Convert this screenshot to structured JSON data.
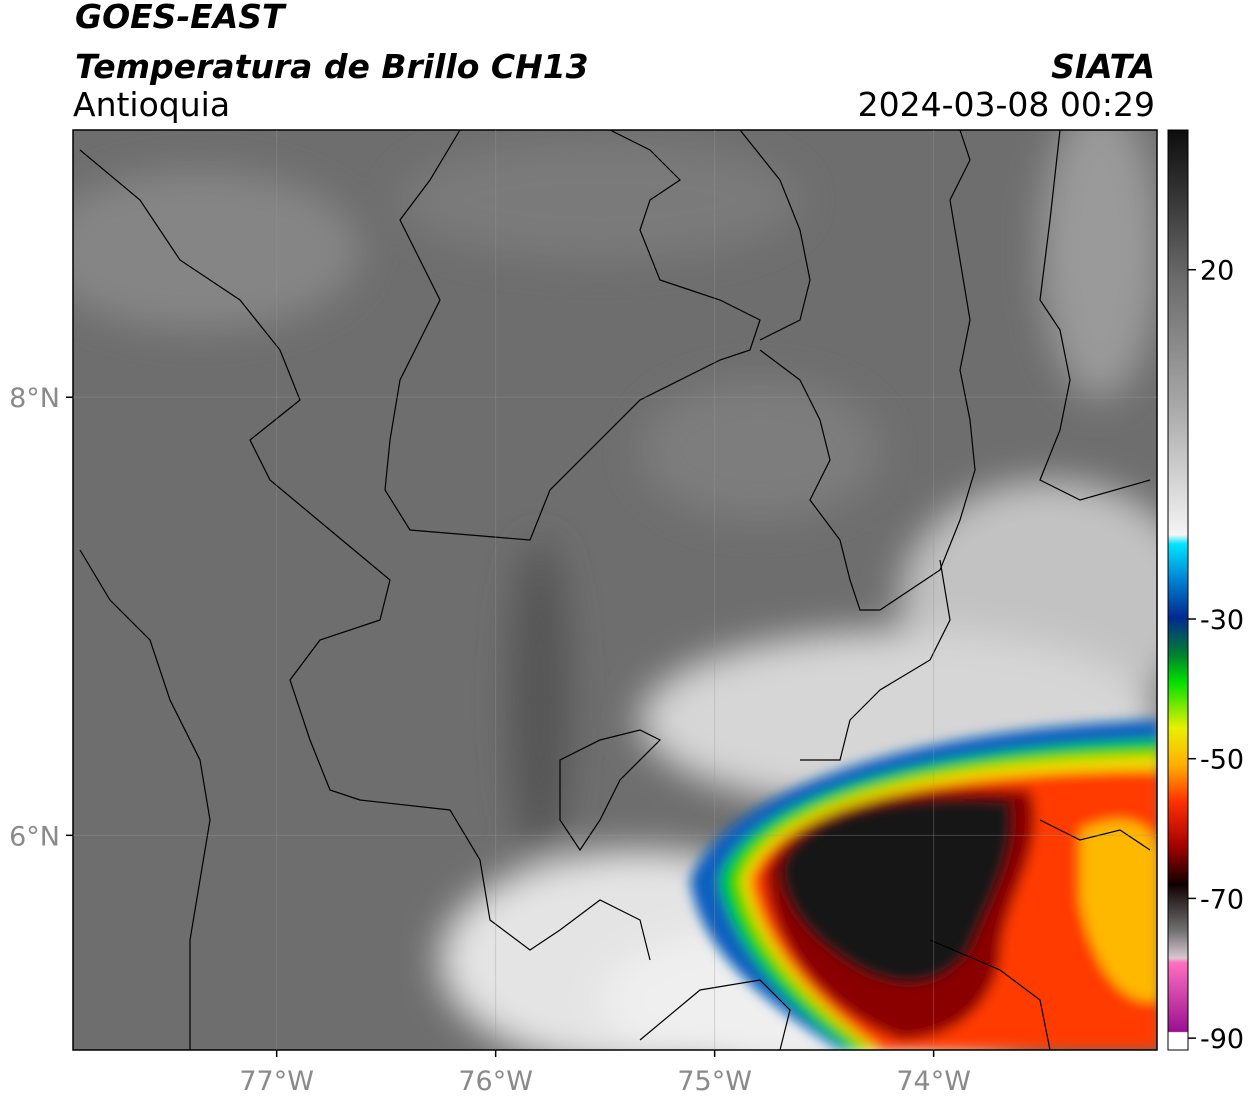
{
  "header": {
    "title": "GOES-EAST",
    "subtitle": "Temperatura de Brillo CH13",
    "region": "Antioquia",
    "source": "SIATA",
    "datetime": "2024-03-08 00:29"
  },
  "map": {
    "xlim": [
      -77.93,
      -72.98
    ],
    "ylim": [
      5.02,
      9.22
    ],
    "xticks": [
      {
        "value": -77,
        "label": "77°W"
      },
      {
        "value": -76,
        "label": "76°W"
      },
      {
        "value": -75,
        "label": "75°W"
      },
      {
        "value": -74,
        "label": "74°W"
      }
    ],
    "yticks": [
      {
        "value": 8,
        "label": "8°N"
      },
      {
        "value": 6,
        "label": "6°N"
      }
    ]
  },
  "colorbar": {
    "lim": [
      -91.7,
      40
    ],
    "ticks": [
      20,
      -30,
      -50,
      -70,
      -90
    ]
  }
}
